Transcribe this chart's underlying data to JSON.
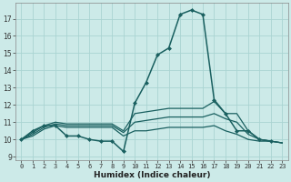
{
  "title": "",
  "xlabel": "Humidex (Indice chaleur)",
  "background_color": "#cceae8",
  "grid_color": "#aad4d2",
  "line_color": "#1a6060",
  "xlim": [
    -0.5,
    23.5
  ],
  "ylim": [
    8.8,
    17.9
  ],
  "yticks": [
    9,
    10,
    11,
    12,
    13,
    14,
    15,
    16,
    17
  ],
  "xticks": [
    0,
    1,
    2,
    3,
    4,
    5,
    6,
    7,
    8,
    9,
    10,
    11,
    12,
    13,
    14,
    15,
    16,
    17,
    18,
    19,
    20,
    21,
    22,
    23
  ],
  "lines": [
    {
      "x": [
        0,
        1,
        2,
        3,
        4,
        5,
        6,
        7,
        8,
        9,
        10,
        11,
        12,
        13,
        14,
        15,
        16,
        17,
        18,
        19,
        20,
        21,
        22
      ],
      "y": [
        10.0,
        10.5,
        10.8,
        10.8,
        10.2,
        10.2,
        10.0,
        9.9,
        9.9,
        9.3,
        12.1,
        13.3,
        14.9,
        15.3,
        17.25,
        17.5,
        17.25,
        12.3,
        11.5,
        10.5,
        10.5,
        10.0,
        9.9
      ],
      "marker": "D",
      "markersize": 2.0,
      "linewidth": 1.1,
      "has_marker": true
    },
    {
      "x": [
        0,
        1,
        2,
        3,
        4,
        5,
        6,
        7,
        8,
        9,
        10,
        11,
        12,
        13,
        14,
        15,
        16,
        17,
        18,
        19,
        20,
        21,
        22,
        23
      ],
      "y": [
        10.0,
        10.4,
        10.8,
        11.0,
        10.9,
        10.9,
        10.9,
        10.9,
        10.9,
        10.5,
        11.5,
        11.6,
        11.7,
        11.8,
        11.8,
        11.8,
        11.8,
        12.2,
        11.5,
        11.5,
        10.5,
        10.0,
        9.9,
        9.8
      ],
      "marker": null,
      "markersize": 0,
      "linewidth": 0.9,
      "has_marker": false
    },
    {
      "x": [
        0,
        1,
        2,
        3,
        4,
        5,
        6,
        7,
        8,
        9,
        10,
        11,
        12,
        13,
        14,
        15,
        16,
        17,
        18,
        19,
        20,
        21,
        22,
        23
      ],
      "y": [
        10.0,
        10.3,
        10.7,
        10.9,
        10.8,
        10.8,
        10.8,
        10.8,
        10.8,
        10.4,
        11.0,
        11.1,
        11.2,
        11.3,
        11.3,
        11.3,
        11.3,
        11.5,
        11.2,
        11.0,
        10.3,
        10.0,
        9.9,
        9.8
      ],
      "marker": null,
      "markersize": 0,
      "linewidth": 0.9,
      "has_marker": false
    },
    {
      "x": [
        0,
        1,
        2,
        3,
        4,
        5,
        6,
        7,
        8,
        9,
        10,
        11,
        12,
        13,
        14,
        15,
        16,
        17,
        18,
        19,
        20,
        21,
        22,
        23
      ],
      "y": [
        10.0,
        10.2,
        10.6,
        10.8,
        10.7,
        10.7,
        10.7,
        10.7,
        10.7,
        10.2,
        10.5,
        10.5,
        10.6,
        10.7,
        10.7,
        10.7,
        10.7,
        10.8,
        10.5,
        10.3,
        10.0,
        9.9,
        9.9,
        9.8
      ],
      "marker": null,
      "markersize": 0,
      "linewidth": 0.9,
      "has_marker": false
    }
  ]
}
